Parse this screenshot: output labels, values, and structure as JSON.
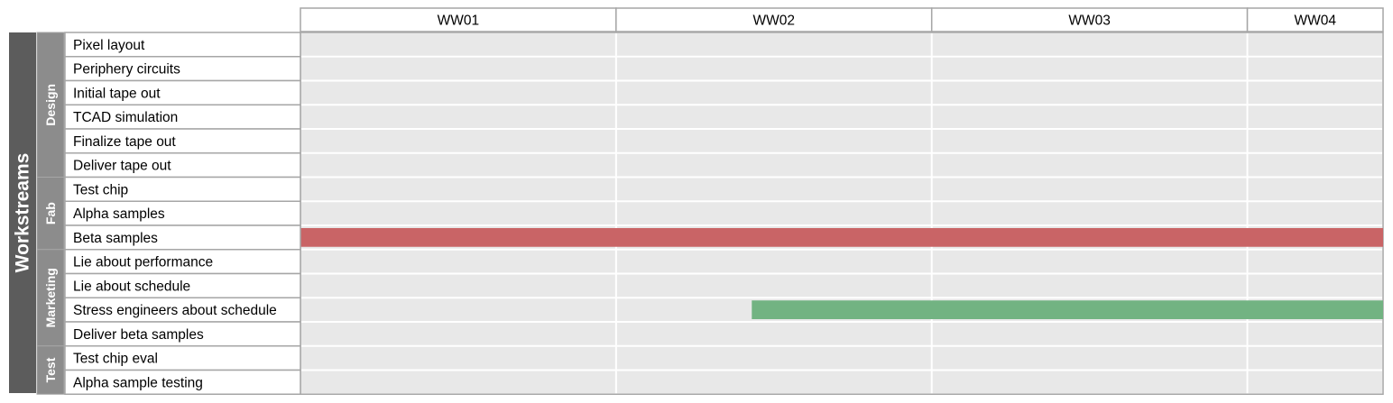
{
  "chart_data": {
    "type": "gantt",
    "title": "",
    "axis_title": "Workstreams",
    "weeks": [
      "WW01",
      "WW02",
      "WW03",
      "WW04"
    ],
    "x_range": [
      0,
      3.43
    ],
    "groups": [
      {
        "name": "Design",
        "tasks": [
          "Pixel layout",
          "Periphery circuits",
          "Initial tape out",
          "TCAD simulation",
          "Finalize tape out",
          "Deliver tape out"
        ]
      },
      {
        "name": "Fab",
        "tasks": [
          "Test chip",
          "Alpha samples",
          "Beta samples"
        ]
      },
      {
        "name": "Marketing",
        "tasks": [
          "Lie about performance",
          "Lie about schedule",
          "Stress engineers about schedule",
          "Deliver beta samples"
        ]
      },
      {
        "name": "Test",
        "tasks": [
          "Test chip eval",
          "Alpha sample testing"
        ]
      }
    ],
    "bars": [
      {
        "task": "Beta samples",
        "start": 0,
        "end": 3.43,
        "color": "#c96466"
      },
      {
        "task": "Stress engineers about schedule",
        "start": 1.43,
        "end": 3.43,
        "color": "#72b382"
      }
    ],
    "grid": true
  },
  "colors": {
    "workstream_band": "#5c5c5c",
    "group_band": "#8c8c8c",
    "cell_background": "#e8e8e8",
    "border": "#a6a6a6"
  }
}
